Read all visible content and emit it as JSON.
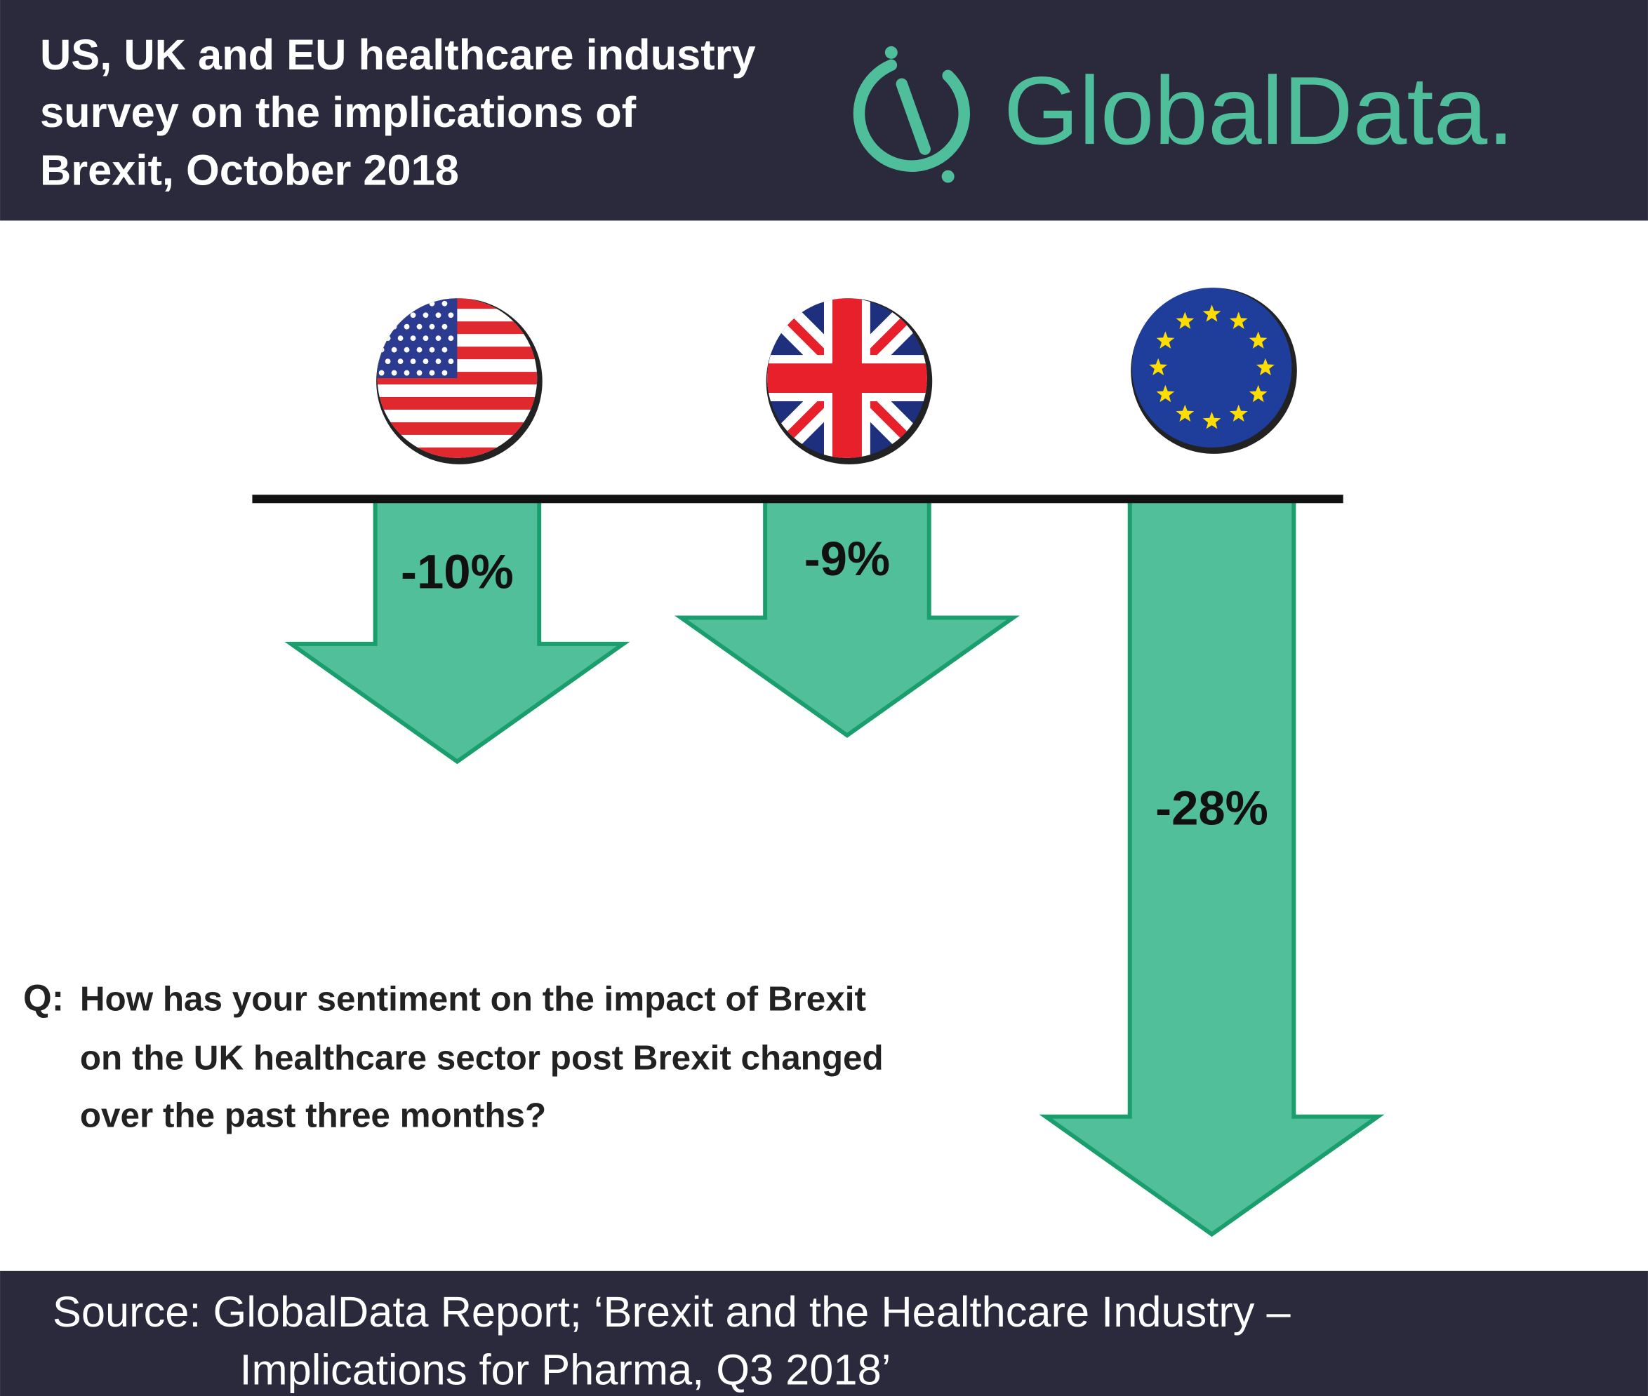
{
  "chart_data": {
    "type": "arrow-bar",
    "title": [
      "US, UK and EU healthcare industry",
      "survey  on the implications of",
      "Brexit, October 2018"
    ],
    "logo": "GlobalData.",
    "values": [
      -10,
      -9,
      -28
    ],
    "value_labels": [
      "-10%",
      "-9%",
      "-28%"
    ],
    "color": "#52bf9b",
    "question_label": "Q:",
    "question": [
      "How has your sentiment on the impact of Brexit",
      "on the UK healthcare sector post Brexit changed",
      "over the past three months?"
    ],
    "source": [
      "Source: GlobalData Report; ‘Brexit and the Healthcare Industry –",
      "Implications for Pharma, Q3 2018’"
    ]
  }
}
